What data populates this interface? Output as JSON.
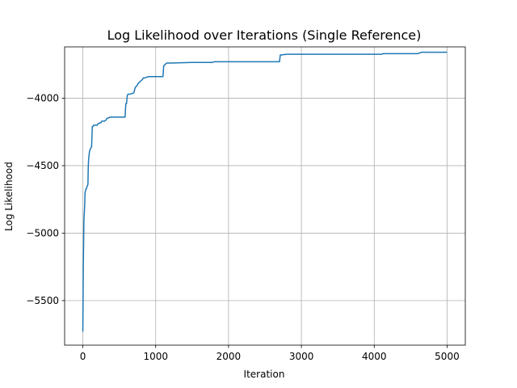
{
  "chart_data": {
    "type": "line",
    "title": "Log Likelihood over Iterations (Single Reference)",
    "xlabel": "Iteration",
    "ylabel": "Log Likelihood",
    "xlim": [
      -250,
      5250
    ],
    "ylim": [
      -5830,
      -3620
    ],
    "xticks": [
      0,
      1000,
      2000,
      3000,
      4000,
      5000
    ],
    "yticks": [
      -5500,
      -5000,
      -4500,
      -4000
    ],
    "xtick_labels": [
      "0",
      "1000",
      "2000",
      "3000",
      "4000",
      "5000"
    ],
    "ytick_labels": [
      "−5500",
      "−5000",
      "−4500",
      "−4000"
    ],
    "grid": true,
    "legend": "none",
    "series": [
      {
        "color": "#1f77b4",
        "x": [
          0,
          3,
          6,
          10,
          15,
          20,
          25,
          30,
          40,
          45,
          50,
          60,
          70,
          75,
          80,
          90,
          100,
          110,
          120,
          130,
          140,
          150,
          200,
          205,
          250,
          260,
          300,
          320,
          330,
          380,
          400,
          550,
          580,
          590,
          600,
          610,
          620,
          650,
          700,
          710,
          720,
          740,
          750,
          760,
          780,
          800,
          820,
          830,
          850,
          900,
          1000,
          1100,
          1110,
          1130,
          1140,
          1150,
          1160,
          1170,
          1200,
          1500,
          1780,
          1800,
          2000,
          2500,
          2700,
          2710,
          2720,
          2800,
          2900,
          3500,
          4100,
          4120,
          4500,
          4600,
          4620,
          4650,
          5000
        ],
        "y": [
          -5730,
          -5500,
          -5250,
          -5100,
          -4900,
          -4850,
          -4800,
          -4700,
          -4680,
          -4670,
          -4670,
          -4650,
          -4640,
          -4500,
          -4450,
          -4400,
          -4380,
          -4370,
          -4360,
          -4210,
          -4210,
          -4200,
          -4200,
          -4190,
          -4180,
          -4170,
          -4170,
          -4160,
          -4150,
          -4140,
          -4140,
          -4140,
          -4140,
          -4040,
          -4040,
          -3980,
          -3970,
          -3970,
          -3960,
          -3940,
          -3920,
          -3910,
          -3900,
          -3890,
          -3880,
          -3870,
          -3860,
          -3850,
          -3850,
          -3840,
          -3840,
          -3840,
          -3760,
          -3750,
          -3745,
          -3740,
          -3740,
          -3740,
          -3740,
          -3735,
          -3735,
          -3730,
          -3730,
          -3730,
          -3730,
          -3680,
          -3680,
          -3675,
          -3675,
          -3675,
          -3675,
          -3670,
          -3670,
          -3670,
          -3665,
          -3660,
          -3660
        ]
      }
    ]
  }
}
